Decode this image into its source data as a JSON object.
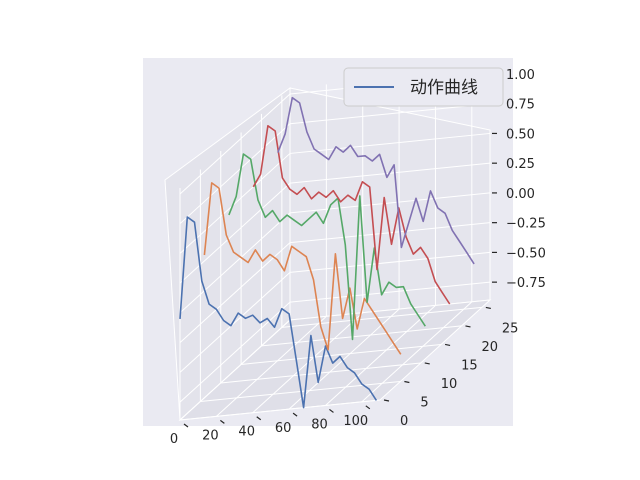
{
  "chart_data": {
    "type": "line",
    "projection": "3d",
    "legend": {
      "position": "top-right",
      "entries": [
        "动作曲线"
      ]
    },
    "grid": true,
    "x_ticks": [
      "0",
      "20",
      "40",
      "60",
      "80",
      "100"
    ],
    "y_ticks": [
      "0",
      "5",
      "10",
      "15",
      "20",
      "25"
    ],
    "z_ticks": [
      "−0.75",
      "−0.50",
      "−0.25",
      "0.00",
      "0.25",
      "0.50",
      "0.75",
      "1.00"
    ],
    "xlim": [
      0,
      110
    ],
    "ylim": [
      0,
      27
    ],
    "zlim": [
      -0.9,
      1.05
    ],
    "series": [
      {
        "name": "动作曲线",
        "color": "#4c72b0",
        "y": 0,
        "x": [
          0,
          4,
          8,
          12,
          16,
          20,
          24,
          28,
          32,
          36,
          40,
          44,
          48,
          52,
          56,
          60,
          64,
          68,
          72,
          76,
          80,
          84,
          88,
          92,
          96,
          100,
          104,
          108
        ],
        "values": [
          -0.05,
          0.8,
          0.75,
          0.25,
          0.05,
          0.0,
          -0.1,
          -0.15,
          -0.05,
          -0.1,
          -0.08,
          -0.15,
          -0.12,
          -0.2,
          -0.05,
          -0.1,
          -0.5,
          -0.9,
          -0.3,
          -0.7,
          -0.4,
          -0.55,
          -0.5,
          -0.6,
          -0.65,
          -0.75,
          -0.8,
          -0.9
        ]
      },
      {
        "color": "#dd8452",
        "y": 6,
        "x": [
          0,
          4,
          8,
          12,
          16,
          20,
          24,
          28,
          32,
          36,
          40,
          44,
          48,
          52,
          56,
          60,
          64,
          68,
          72,
          76,
          80,
          84,
          88,
          92,
          96,
          100,
          104,
          108
        ],
        "values": [
          0.3,
          0.9,
          0.85,
          0.45,
          0.3,
          0.25,
          0.2,
          0.3,
          0.2,
          0.25,
          0.2,
          0.1,
          0.3,
          0.25,
          0.2,
          0.0,
          -0.4,
          -0.6,
          0.2,
          -0.35,
          -0.1,
          -0.45,
          -0.2,
          -0.3,
          -0.4,
          -0.5,
          -0.6,
          -0.7
        ]
      },
      {
        "color": "#55a868",
        "y": 12,
        "x": [
          0,
          4,
          8,
          12,
          16,
          20,
          24,
          28,
          32,
          36,
          40,
          44,
          48,
          52,
          56,
          60,
          64,
          68,
          72,
          76,
          80,
          84,
          88,
          92,
          96,
          100,
          104,
          108
        ],
        "values": [
          0.45,
          0.6,
          0.95,
          0.9,
          0.55,
          0.4,
          0.45,
          0.35,
          0.4,
          0.35,
          0.3,
          0.35,
          0.4,
          0.3,
          0.45,
          0.5,
          0.1,
          -0.7,
          0.5,
          -0.4,
          0.05,
          -0.35,
          -0.25,
          -0.3,
          -0.3,
          -0.45,
          -0.55,
          -0.65
        ]
      },
      {
        "color": "#c44e52",
        "y": 18,
        "x": [
          0,
          4,
          8,
          12,
          16,
          20,
          24,
          28,
          32,
          36,
          40,
          44,
          48,
          52,
          56,
          60,
          64,
          68,
          72,
          76,
          80,
          84,
          88,
          92,
          96,
          100,
          104,
          108
        ],
        "values": [
          0.5,
          0.6,
          1.0,
          0.95,
          0.55,
          0.45,
          0.4,
          0.45,
          0.35,
          0.4,
          0.35,
          0.4,
          0.3,
          0.35,
          0.3,
          0.45,
          0.4,
          -0.3,
          0.3,
          -0.1,
          0.2,
          -0.05,
          -0.2,
          -0.15,
          -0.25,
          -0.45,
          -0.55,
          -0.65
        ]
      },
      {
        "color": "#8172b2",
        "y": 24,
        "x": [
          0,
          4,
          8,
          12,
          16,
          20,
          24,
          28,
          32,
          36,
          40,
          44,
          48,
          52,
          56,
          60,
          64,
          68,
          72,
          76,
          80,
          84,
          88,
          92,
          96,
          100,
          104,
          108
        ],
        "values": [
          0.6,
          0.75,
          1.05,
          1.0,
          0.75,
          0.6,
          0.55,
          0.5,
          0.6,
          0.55,
          0.6,
          0.5,
          0.5,
          0.45,
          0.5,
          0.3,
          0.4,
          -0.3,
          -0.1,
          0.1,
          -0.1,
          0.15,
          0.0,
          -0.05,
          -0.2,
          -0.3,
          -0.4,
          -0.5
        ]
      }
    ]
  }
}
